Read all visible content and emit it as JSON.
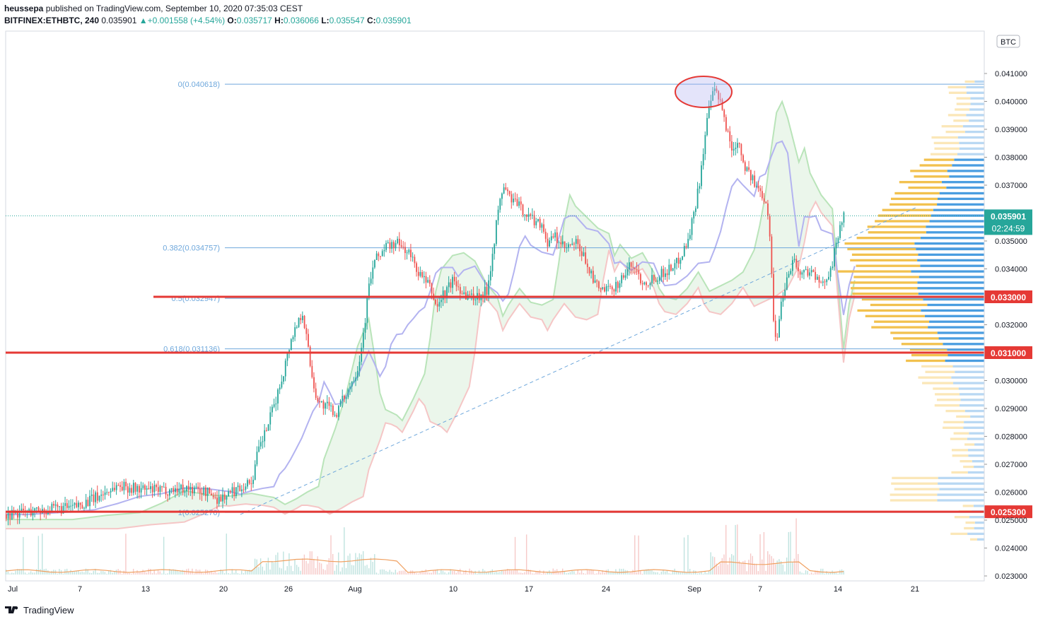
{
  "header": {
    "author": "heussepa",
    "published_text": "published on TradingView.com, September 10, 2020 07:35:03 CEST",
    "symbol": "BITFINEX:ETHBTC, 240",
    "last": "0.035901",
    "change": "+0.001558 (+4.54%)",
    "open_label": "O:",
    "open": "0.035717",
    "high_label": "H:",
    "high": "0.036066",
    "low_label": "L:",
    "low": "0.035547",
    "close_label": "C:",
    "close": "0.035901"
  },
  "footer": {
    "brand": "TradingView",
    "logo_icon": "tradingview-logo-icon"
  },
  "chart_data": {
    "type": "candlestick",
    "currency_label": "BTC",
    "ylim": [
      0.0228,
      0.0428
    ],
    "y_ticks": [
      "0.041000",
      "0.040000",
      "0.039000",
      "0.038000",
      "0.037000",
      "0.035000",
      "0.034000",
      "0.032000",
      "0.030000",
      "0.029000",
      "0.028000",
      "0.027000",
      "0.026000",
      "0.025000",
      "0.024000",
      "0.023000"
    ],
    "x_ticks": [
      "Jul",
      "7",
      "13",
      "20",
      "26",
      "Aug",
      "10",
      "17",
      "24",
      "Sep",
      "7",
      "14",
      "21"
    ],
    "fib_levels": [
      {
        "label": "0(0.040618)",
        "value": 0.040618
      },
      {
        "label": "0.382(0.034757)",
        "value": 0.034757
      },
      {
        "label": "0.5(0.032947)",
        "value": 0.032947
      },
      {
        "label": "0.618(0.031136)",
        "value": 0.031136
      },
      {
        "label": "1(0.025276)",
        "value": 0.025276
      }
    ],
    "horizontal_levels": [
      {
        "label": "0.033000",
        "value": 0.033
      },
      {
        "label": "0.031000",
        "value": 0.031
      },
      {
        "label": "0.025300",
        "value": 0.0253
      }
    ],
    "last_price_label": "0.035901",
    "countdown_label": "02:24:59",
    "colors": {
      "up": "#26a69a",
      "down": "#ef5350",
      "level": "#e53935",
      "fib": "#6fa8dc",
      "kumo_green": "#b9e4b9",
      "kumo_red": "#f5c6c6",
      "kijun": "#b3b3f0",
      "vp_blue": "#4a9de0",
      "vp_yellow": "#f2c14e"
    },
    "price_path": [
      [
        0,
        0.0252
      ],
      [
        3,
        0.02535
      ],
      [
        6,
        0.02545
      ],
      [
        8,
        0.0258
      ],
      [
        10,
        0.02625
      ],
      [
        12,
        0.0261
      ],
      [
        14,
        0.02605
      ],
      [
        16,
        0.02615
      ],
      [
        18,
        0.026
      ],
      [
        19,
        0.02575
      ],
      [
        20,
        0.02595
      ],
      [
        21,
        0.0262
      ],
      [
        22,
        0.0264
      ],
      [
        22.5,
        0.0274
      ],
      [
        23.5,
        0.0285
      ],
      [
        24.5,
        0.0298
      ],
      [
        25.5,
        0.0315
      ],
      [
        26.5,
        0.0325
      ],
      [
        27,
        0.0312
      ],
      [
        27.5,
        0.0298
      ],
      [
        28,
        0.0292
      ],
      [
        29,
        0.029
      ],
      [
        29.5,
        0.0288
      ],
      [
        30.5,
        0.0296
      ],
      [
        31.5,
        0.0305
      ],
      [
        32,
        0.0318
      ],
      [
        32.5,
        0.0335
      ],
      [
        33,
        0.0343
      ],
      [
        34,
        0.0348
      ],
      [
        35,
        0.0349
      ],
      [
        36,
        0.0346
      ],
      [
        37,
        0.0338
      ],
      [
        38,
        0.0333
      ],
      [
        38.5,
        0.0326
      ],
      [
        39,
        0.033
      ],
      [
        40,
        0.0336
      ],
      [
        41,
        0.0331
      ],
      [
        42,
        0.033
      ],
      [
        43,
        0.0332
      ],
      [
        43.5,
        0.0345
      ],
      [
        44,
        0.036
      ],
      [
        44.5,
        0.037
      ],
      [
        45,
        0.0366
      ],
      [
        46,
        0.0362
      ],
      [
        47,
        0.0358
      ],
      [
        48,
        0.0356
      ],
      [
        48.5,
        0.0348
      ],
      [
        49,
        0.0352
      ],
      [
        50,
        0.0347
      ],
      [
        51,
        0.0349
      ],
      [
        52,
        0.0342
      ],
      [
        52.5,
        0.0336
      ],
      [
        53,
        0.0333
      ],
      [
        54,
        0.0332
      ],
      [
        55,
        0.0336
      ],
      [
        56,
        0.0342
      ],
      [
        57,
        0.0335
      ],
      [
        58,
        0.0337
      ],
      [
        59,
        0.0339
      ],
      [
        60,
        0.0342
      ],
      [
        61,
        0.035
      ],
      [
        61.5,
        0.0359
      ],
      [
        62,
        0.037
      ],
      [
        62.5,
        0.0386
      ],
      [
        63,
        0.04
      ],
      [
        63.5,
        0.0404
      ],
      [
        64,
        0.0398
      ],
      [
        64.5,
        0.039
      ],
      [
        65,
        0.0382
      ],
      [
        65.5,
        0.0387
      ],
      [
        66,
        0.0378
      ],
      [
        67,
        0.037
      ],
      [
        68,
        0.0365
      ],
      [
        68.3,
        0.0356
      ],
      [
        68.7,
        0.032
      ],
      [
        69,
        0.0314
      ],
      [
        69.3,
        0.0327
      ],
      [
        70,
        0.0339
      ],
      [
        70.5,
        0.0344
      ],
      [
        71,
        0.0338
      ],
      [
        72,
        0.034
      ],
      [
        73,
        0.0333
      ],
      [
        73.5,
        0.0338
      ],
      [
        74,
        0.0343
      ],
      [
        74.7,
        0.0357
      ],
      [
        75,
        0.0359
      ]
    ]
  }
}
